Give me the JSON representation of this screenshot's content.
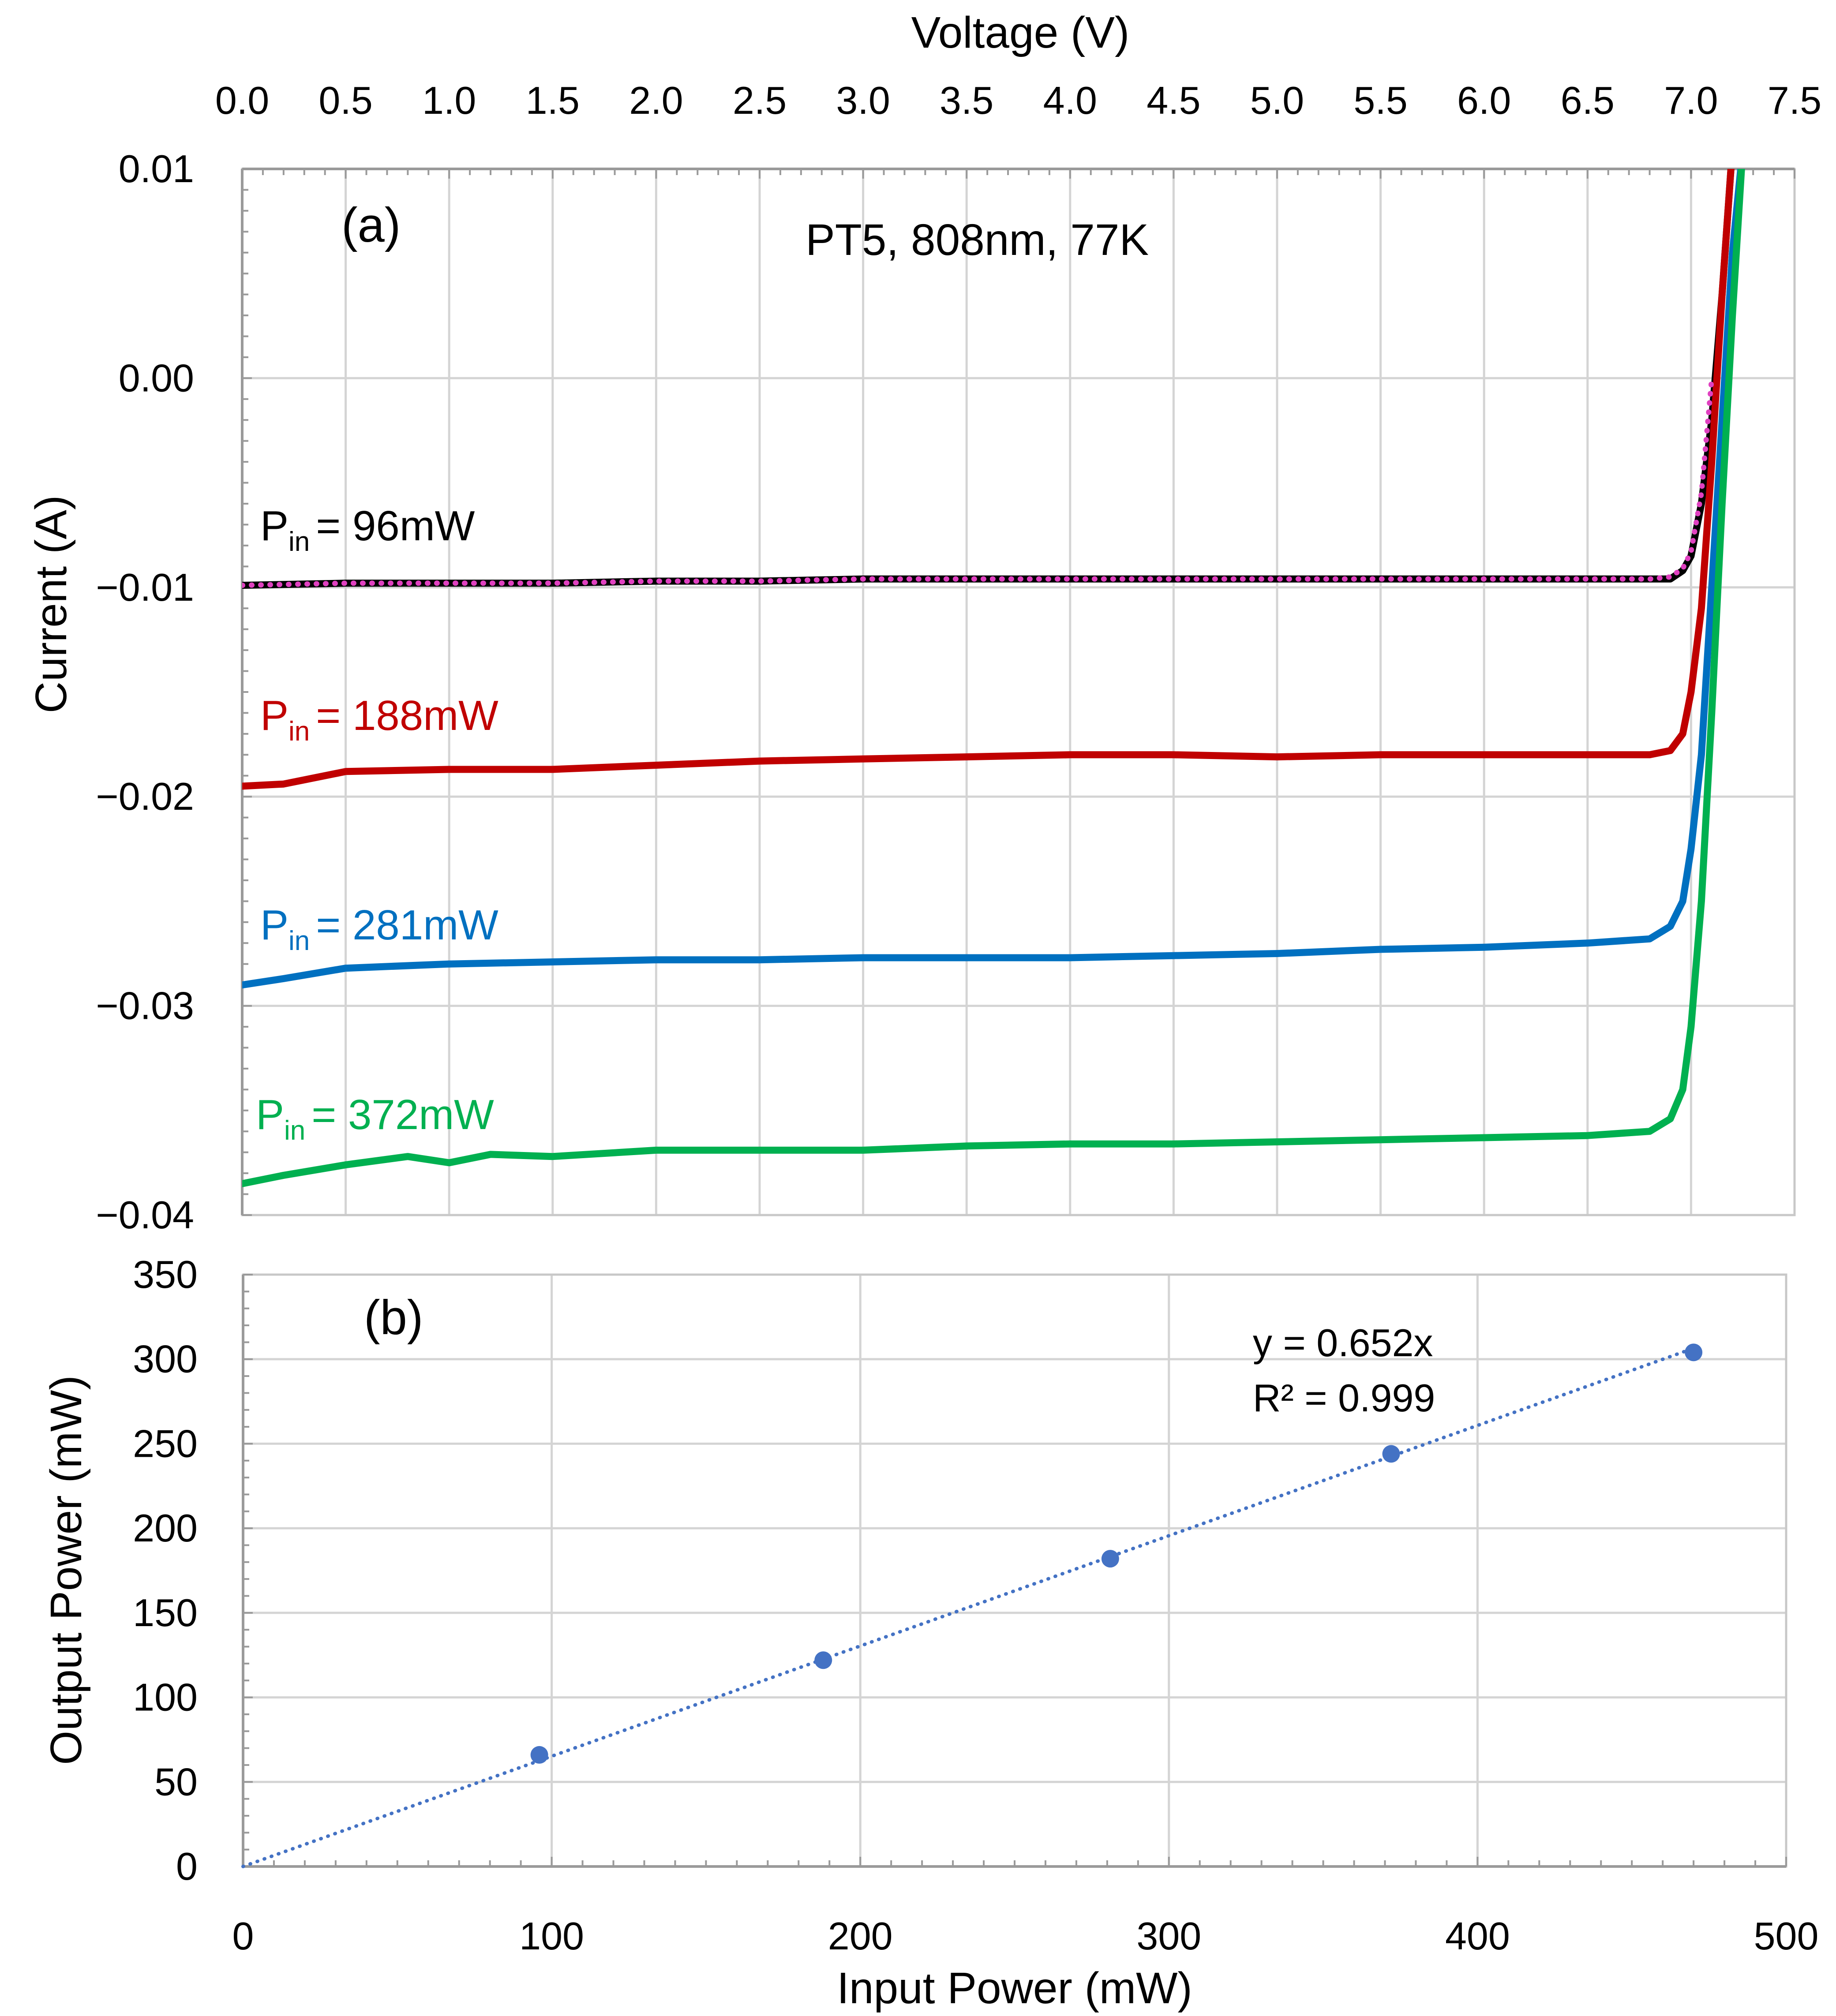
{
  "chart_data": [
    {
      "panel": "(a)",
      "type": "line",
      "annotation": "PT5, 808nm, 77K",
      "xlabel": "Voltage (V)",
      "ylabel": "Current (A)",
      "xlim": [
        0,
        7.5
      ],
      "ylim": [
        -0.04,
        0.01
      ],
      "xticks": [
        0.0,
        0.5,
        1.0,
        1.5,
        2.0,
        2.5,
        3.0,
        3.5,
        4.0,
        4.5,
        5.0,
        5.5,
        6.0,
        6.5,
        7.0,
        7.5
      ],
      "xtick_labels": [
        "0.0",
        "0.5",
        "1.0",
        "1.5",
        "2.0",
        "2.5",
        "3.0",
        "3.5",
        "4.0",
        "4.5",
        "5.0",
        "5.5",
        "6.0",
        "6.5",
        "7.0",
        "7.5"
      ],
      "yticks": [
        0.01,
        0.0,
        -0.01,
        -0.02,
        -0.03,
        -0.04
      ],
      "ytick_labels": [
        "0.01",
        "0.00",
        "−0.01",
        "−0.02",
        "−0.03",
        "−0.04"
      ],
      "grid": true,
      "series": [
        {
          "name": "Pin = 96mW",
          "label_base": "P",
          "label_sub": "in",
          "label_value": "= 96mW",
          "color": "#000000",
          "style": "solid",
          "x": [
            0.0,
            0.5,
            1.0,
            1.5,
            2.0,
            2.5,
            3.0,
            3.5,
            4.0,
            4.5,
            5.0,
            5.5,
            6.0,
            6.5,
            6.8,
            6.9,
            6.96,
            7.0,
            7.05,
            7.1,
            7.15,
            7.2
          ],
          "y": [
            -0.0099,
            -0.0098,
            -0.0098,
            -0.0098,
            -0.0097,
            -0.0097,
            -0.0096,
            -0.0096,
            -0.0096,
            -0.0096,
            -0.0096,
            -0.0096,
            -0.0096,
            -0.0096,
            -0.0096,
            -0.0096,
            -0.0092,
            -0.0085,
            -0.006,
            -0.002,
            0.004,
            0.011
          ]
        },
        {
          "name": "Pin = 96mW (fit)",
          "label_base": "",
          "label_sub": "",
          "label_value": "",
          "color": "#e040c0",
          "style": "dotted",
          "x": [
            0.0,
            0.5,
            1.0,
            1.5,
            2.0,
            2.5,
            3.0,
            3.5,
            4.0,
            4.5,
            5.0,
            5.5,
            6.0,
            6.5,
            6.8,
            6.9,
            6.96,
            7.0,
            7.05,
            7.1
          ],
          "y": [
            -0.0099,
            -0.0098,
            -0.0098,
            -0.0098,
            -0.0097,
            -0.0097,
            -0.0096,
            -0.0096,
            -0.0096,
            -0.0096,
            -0.0096,
            -0.0096,
            -0.0096,
            -0.0096,
            -0.0096,
            -0.0095,
            -0.0091,
            -0.0083,
            -0.0055,
            0.0
          ]
        },
        {
          "name": "Pin = 188mW",
          "label_base": "P",
          "label_sub": "in",
          "label_value": "= 188mW",
          "color": "#c00000",
          "style": "solid",
          "x": [
            0.0,
            0.2,
            0.5,
            1.0,
            1.5,
            2.0,
            2.5,
            3.0,
            3.5,
            4.0,
            4.5,
            5.0,
            5.5,
            6.0,
            6.5,
            6.8,
            6.9,
            6.96,
            7.0,
            7.05,
            7.1,
            7.15,
            7.2
          ],
          "y": [
            -0.0195,
            -0.0194,
            -0.0188,
            -0.0187,
            -0.0187,
            -0.0185,
            -0.0183,
            -0.0182,
            -0.0181,
            -0.018,
            -0.018,
            -0.0181,
            -0.018,
            -0.018,
            -0.018,
            -0.018,
            -0.0178,
            -0.017,
            -0.015,
            -0.011,
            -0.004,
            0.004,
            0.011
          ]
        },
        {
          "name": "Pin = 281mW",
          "label_base": "P",
          "label_sub": "in",
          "label_value": "= 281mW",
          "color": "#0070c0",
          "style": "solid",
          "x": [
            0.0,
            0.2,
            0.5,
            1.0,
            1.5,
            2.0,
            2.5,
            3.0,
            3.5,
            4.0,
            4.5,
            5.0,
            5.5,
            6.0,
            6.5,
            6.8,
            6.9,
            6.96,
            7.0,
            7.05,
            7.1,
            7.15,
            7.2,
            7.25
          ],
          "y": [
            -0.029,
            -0.0287,
            -0.0282,
            -0.028,
            -0.0279,
            -0.0278,
            -0.0278,
            -0.0277,
            -0.0277,
            -0.0277,
            -0.0276,
            -0.0275,
            -0.0273,
            -0.0272,
            -0.027,
            -0.0268,
            -0.0262,
            -0.025,
            -0.0225,
            -0.018,
            -0.01,
            -0.002,
            0.006,
            0.011
          ]
        },
        {
          "name": "Pin = 372mW",
          "label_base": "P",
          "label_sub": "in",
          "label_value": "= 372mW",
          "color": "#00b050",
          "style": "solid",
          "x": [
            0.0,
            0.2,
            0.5,
            0.8,
            1.0,
            1.2,
            1.5,
            2.0,
            2.5,
            3.0,
            3.5,
            4.0,
            4.5,
            5.0,
            5.5,
            6.0,
            6.5,
            6.8,
            6.9,
            6.96,
            7.0,
            7.05,
            7.1,
            7.15,
            7.2,
            7.25
          ],
          "y": [
            -0.0385,
            -0.0381,
            -0.0376,
            -0.0372,
            -0.0375,
            -0.0371,
            -0.0372,
            -0.0369,
            -0.0369,
            -0.0369,
            -0.0367,
            -0.0366,
            -0.0366,
            -0.0365,
            -0.0364,
            -0.0363,
            -0.0362,
            -0.036,
            -0.0354,
            -0.034,
            -0.031,
            -0.025,
            -0.016,
            -0.006,
            0.003,
            0.011
          ]
        }
      ]
    },
    {
      "panel": "(b)",
      "type": "scatter",
      "xlabel": "Input Power (mW)",
      "ylabel": "Output Power (mW)",
      "xlim": [
        0,
        500
      ],
      "ylim": [
        0,
        350
      ],
      "xticks": [
        0,
        100,
        200,
        300,
        400,
        500
      ],
      "yticks": [
        0,
        50,
        100,
        150,
        200,
        250,
        300,
        350
      ],
      "grid": true,
      "points": {
        "x": [
          96,
          188,
          281,
          372,
          470
        ],
        "y": [
          66,
          122,
          182,
          244,
          304
        ],
        "color": "#4472c4"
      },
      "trendline": {
        "equation": "y = 0.652x",
        "r_squared": "R² = 0.999",
        "slope": 0.652,
        "x_range": [
          0,
          470
        ],
        "color": "#4472c4",
        "style": "dotted"
      }
    }
  ]
}
